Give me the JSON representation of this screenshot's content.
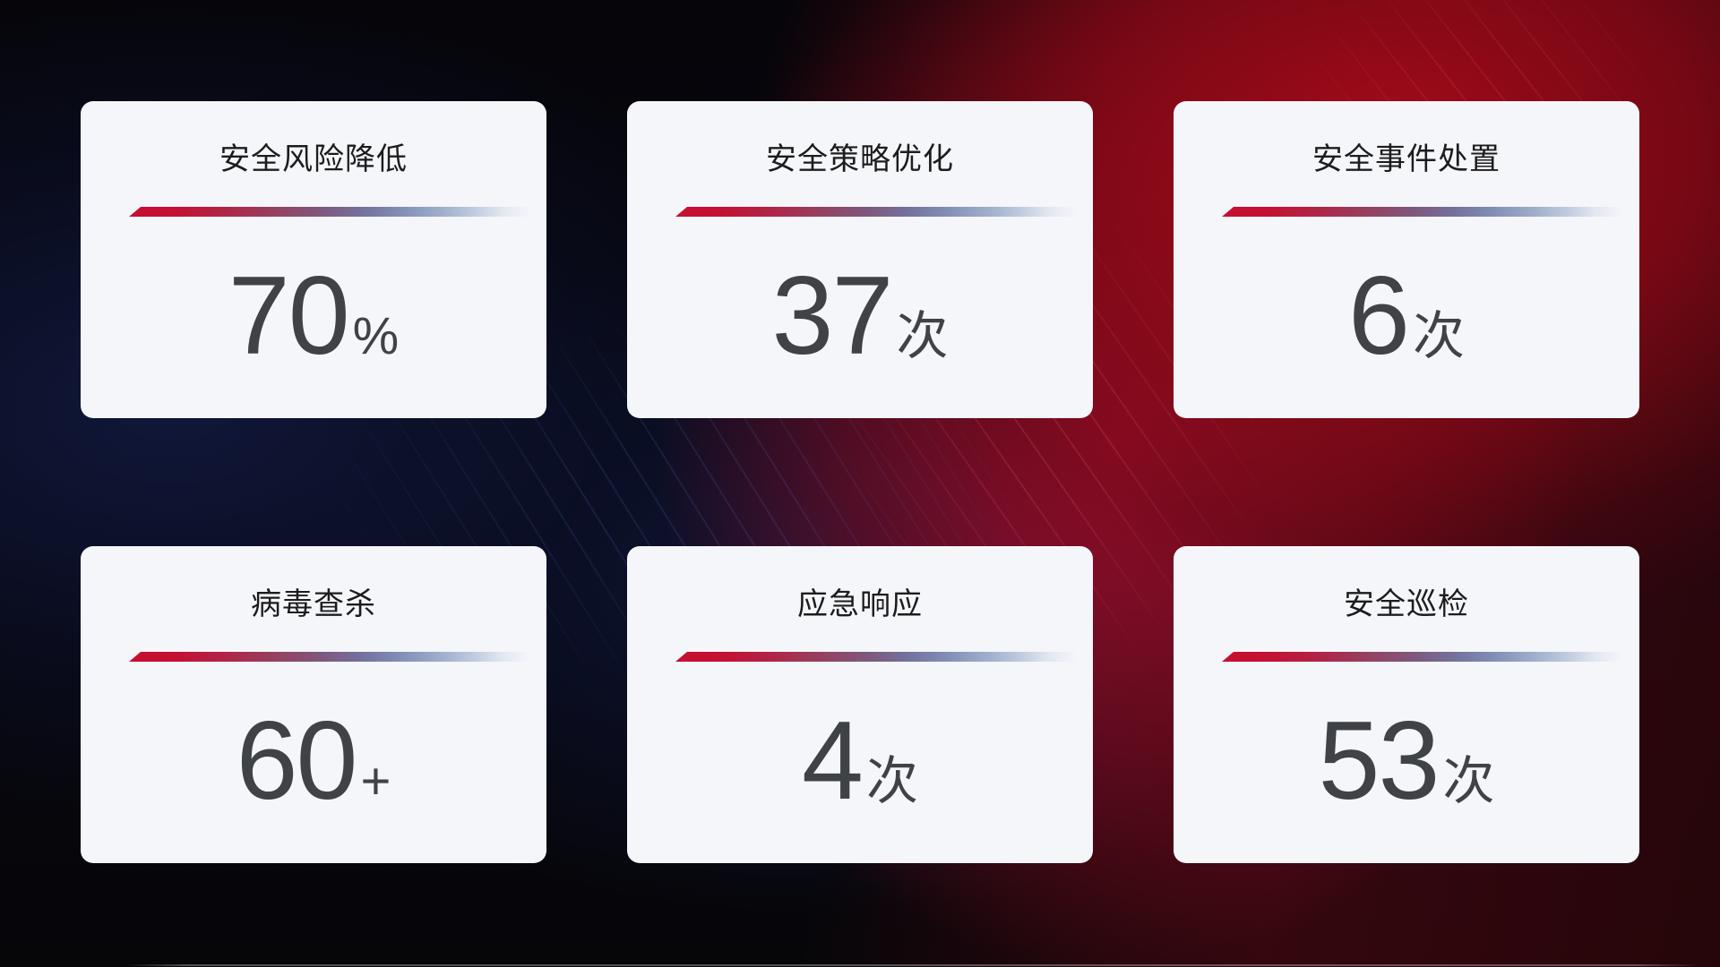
{
  "page": {
    "theme": {
      "background_base": "#07070c",
      "background_red_accent": "#8f0a18",
      "background_navy_accent": "#111a3e",
      "card_background": "#f5f6fa",
      "title_color": "#1c1c1e",
      "number_color": "#3f4348",
      "divider_gradient_start": "#c60f31",
      "divider_gradient_end": "#dfe5ef"
    }
  },
  "cards": [
    {
      "title": "安全风险降低",
      "value": "70",
      "unit": "%"
    },
    {
      "title": "安全策略优化",
      "value": "37",
      "unit": "次"
    },
    {
      "title": "安全事件处置",
      "value": "6",
      "unit": "次"
    },
    {
      "title": "病毒查杀",
      "value": "60",
      "unit": "+"
    },
    {
      "title": "应急响应",
      "value": "4",
      "unit": "次"
    },
    {
      "title": "安全巡检",
      "value": "53",
      "unit": "次"
    }
  ]
}
